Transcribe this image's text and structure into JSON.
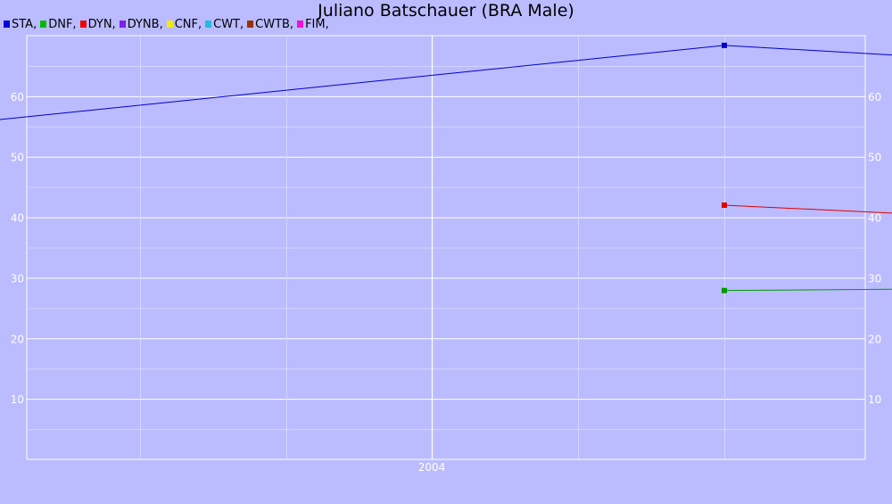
{
  "chart_data": {
    "type": "line",
    "title": "Juliano Batschauer (BRA Male)",
    "xlabel": "",
    "ylabel": "",
    "x_ticks": [
      "2004"
    ],
    "ylim": [
      0,
      70
    ],
    "y_ticks": [
      10,
      20,
      30,
      40,
      50,
      60
    ],
    "grid": true,
    "legend_position": "top-left",
    "legend": [
      {
        "label": "STA,",
        "color": "#0000dd"
      },
      {
        "label": "DNF,",
        "color": "#00bb00"
      },
      {
        "label": "DYN,",
        "color": "#ee0000"
      },
      {
        "label": "DYNB,",
        "color": "#7722ee"
      },
      {
        "label": "CNF,",
        "color": "#eeee00"
      },
      {
        "label": "CWT,",
        "color": "#22bbdd"
      },
      {
        "label": "CWTB,",
        "color": "#993300"
      },
      {
        "label": "FIM,",
        "color": "#ee11dd"
      }
    ],
    "series": [
      {
        "name": "STA",
        "color": "#0000cc",
        "points": [
          [
            "2002-05",
            55.2
          ],
          [
            "2005-01",
            68.4
          ],
          [
            "2006-12",
            63.1
          ]
        ]
      },
      {
        "name": "DNF",
        "color": "#009900",
        "points": [
          [
            "2005-01",
            27.9
          ],
          [
            "2006-12",
            28.6
          ]
        ]
      },
      {
        "name": "DYN",
        "color": "#dd0000",
        "points": [
          [
            "2005-01",
            42.0
          ],
          [
            "2006-12",
            37.6
          ]
        ]
      }
    ]
  }
}
